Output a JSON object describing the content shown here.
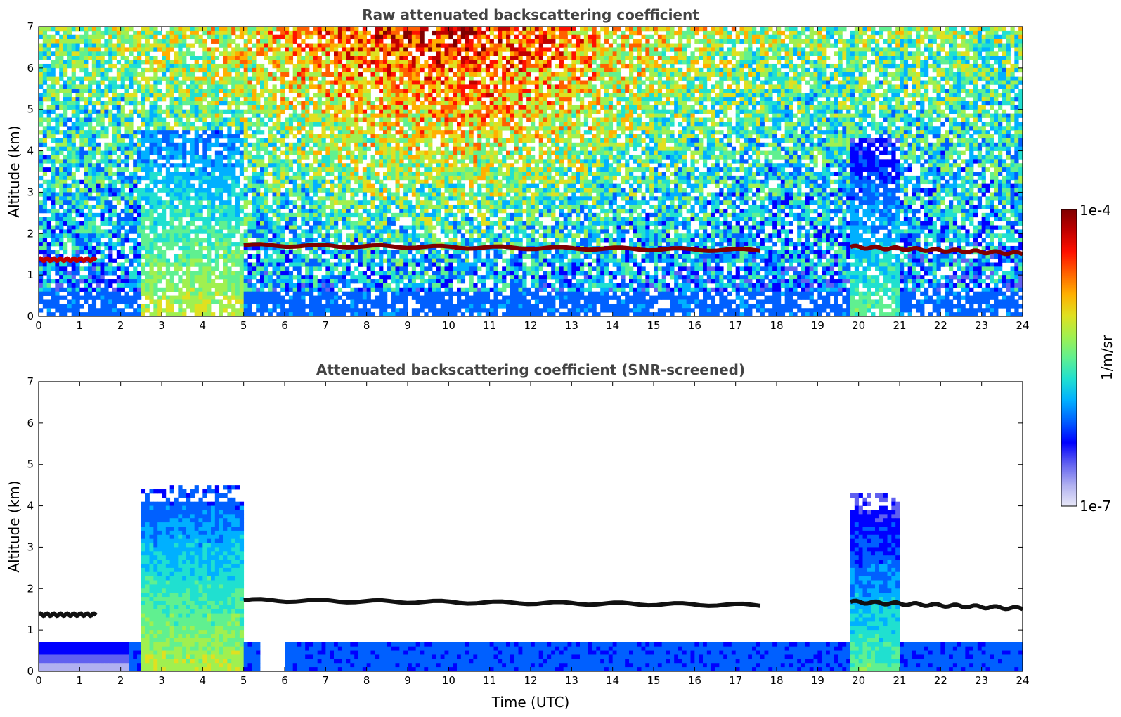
{
  "chart_data": [
    {
      "type": "heatmap",
      "title": "Raw attenuated backscattering coefficient",
      "xlabel": "",
      "ylabel": "Altitude (km)",
      "xlim": [
        0,
        24
      ],
      "ylim": [
        0,
        7
      ],
      "xticks": [
        "0",
        "1",
        "2",
        "3",
        "4",
        "5",
        "6",
        "7",
        "8",
        "9",
        "10",
        "11",
        "12",
        "13",
        "14",
        "15",
        "16",
        "17",
        "18",
        "19",
        "20",
        "21",
        "22",
        "23",
        "24"
      ],
      "yticks": [
        "0",
        "1",
        "2",
        "3",
        "4",
        "5",
        "6",
        "7"
      ],
      "layers": [
        {
          "feature": "cloud-layer",
          "x": [
            0.0,
            1.4
          ],
          "altitude": [
            1.37,
            1.37
          ],
          "level": 0.95
        },
        {
          "feature": "cloud-layer",
          "x": [
            5.0,
            17.6
          ],
          "altitude": [
            1.72,
            1.6
          ],
          "level": 0.97
        },
        {
          "feature": "cloud-layer",
          "x": [
            19.8,
            24.0
          ],
          "altitude": [
            1.68,
            1.52
          ],
          "level": 0.97
        }
      ],
      "aerosol_columns": [
        {
          "x": [
            2.5,
            5.0
          ],
          "top_km": 4.5,
          "level": 0.6
        },
        {
          "x": [
            19.8,
            21.0
          ],
          "top_km": 4.3,
          "level": 0.5
        }
      ],
      "noise": "high"
    },
    {
      "type": "heatmap",
      "title": "Attenuated backscattering coefficient (SNR-screened)",
      "xlabel": "Time (UTC)",
      "ylabel": "Altitude (km)",
      "xlim": [
        0,
        24
      ],
      "ylim": [
        0,
        7
      ],
      "xticks": [
        "0",
        "1",
        "2",
        "3",
        "4",
        "5",
        "6",
        "7",
        "8",
        "9",
        "10",
        "11",
        "12",
        "13",
        "14",
        "15",
        "16",
        "17",
        "18",
        "19",
        "20",
        "21",
        "22",
        "23",
        "24"
      ],
      "yticks": [
        "0",
        "1",
        "2",
        "3",
        "4",
        "5",
        "6",
        "7"
      ],
      "layers": [
        {
          "feature": "cloud-layer",
          "x": [
            0.0,
            1.4
          ],
          "altitude": [
            1.37,
            1.37
          ],
          "level": 1.0
        },
        {
          "feature": "cloud-layer",
          "x": [
            5.0,
            17.6
          ],
          "altitude": [
            1.72,
            1.6
          ],
          "level": 1.0
        },
        {
          "feature": "cloud-layer",
          "x": [
            19.8,
            24.0
          ],
          "altitude": [
            1.68,
            1.52
          ],
          "level": 1.0
        }
      ],
      "aerosol_columns": [
        {
          "x": [
            2.5,
            5.0
          ],
          "top_km": 4.5,
          "level": 0.6
        },
        {
          "x": [
            19.8,
            21.0
          ],
          "top_km": 4.3,
          "level": 0.5
        }
      ],
      "noise": "screened"
    }
  ],
  "colorbar": {
    "label": "1/m/sr",
    "max_label": "1e-4",
    "min_label": "1e-7",
    "colors": [
      "#e8e8f8",
      "#b0b0f0",
      "#6060f0",
      "#0000ff",
      "#0060ff",
      "#00b0ff",
      "#20e0d0",
      "#60f090",
      "#a0f050",
      "#e0e020",
      "#ffb000",
      "#ff6000",
      "#ff1000",
      "#c00000",
      "#800000"
    ]
  }
}
